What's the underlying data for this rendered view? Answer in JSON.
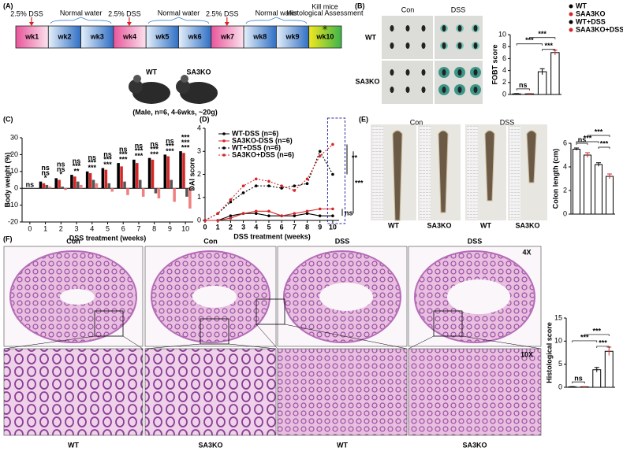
{
  "panel_labels": [
    "(A)",
    "(B)",
    "(C)",
    "(D)",
    "(E)",
    "(F)"
  ],
  "timeline": {
    "weeks": [
      "wk1",
      "wk2",
      "wk3",
      "wk4",
      "wk5",
      "wk6",
      "wk7",
      "wk8",
      "wk9",
      "wk10"
    ],
    "treatments": [
      "2.5% DSS",
      "Normal water",
      "2.5% DSS",
      "Normal water",
      "2.5% DSS",
      "Normal water"
    ],
    "end_labels": [
      "Kill mice",
      "Histological Assessment"
    ]
  },
  "mice": {
    "labels": [
      "WT",
      "SA3KO"
    ],
    "note": "(Male, n=6, 4-6wks, ~20g)"
  },
  "images_b": {
    "columns": [
      "Con",
      "DSS"
    ],
    "rows": [
      "WT",
      "SA3KO"
    ]
  },
  "images_e": {
    "columns": [
      "Con",
      "DSS"
    ],
    "labels": [
      "WT",
      "SA3KO",
      "WT",
      "SA3KO"
    ]
  },
  "images_f": {
    "columns": [
      "Con",
      "Con",
      "DSS",
      "DSS"
    ],
    "magnifications": [
      "4X",
      "10X"
    ],
    "labels": [
      "WT",
      "SA3KO",
      "WT",
      "SA3KO"
    ]
  },
  "chart_data": [
    {
      "type": "bar",
      "ylabel": "FOBT score",
      "ylim": [
        0,
        10
      ],
      "yticks": [
        0,
        2,
        4,
        6,
        8,
        10
      ],
      "series": [
        {
          "name": "WT",
          "color": "#000000",
          "marker": "circle",
          "values": [
            0.1
          ],
          "errors": [
            0.05
          ]
        },
        {
          "name": "SAA3KO",
          "color": "#d62728",
          "marker": "square",
          "values": [
            0.1
          ],
          "errors": [
            0.05
          ]
        },
        {
          "name": "WT+DSS",
          "color": "#000000",
          "marker": "triangle",
          "values": [
            3.8
          ],
          "errors": [
            0.5
          ]
        },
        {
          "name": "SAA3KO+DSS",
          "color": "#d62728",
          "marker": "triangle",
          "values": [
            7.0
          ],
          "errors": [
            0.4
          ]
        }
      ],
      "annotations": [
        "ns",
        "***",
        "***",
        "***"
      ]
    },
    {
      "type": "groupbar",
      "ylabel": "Body weight (%)",
      "xlabel": "DSS treatment (weeks)",
      "x": [
        0,
        1,
        2,
        3,
        4,
        5,
        6,
        7,
        8,
        9,
        10
      ],
      "xticks": [
        0,
        1,
        2,
        3,
        4,
        5,
        6,
        7,
        8,
        9,
        10
      ],
      "xlim": [
        -0.5,
        10.5
      ],
      "ylim": [
        -20,
        30
      ],
      "yticks": [
        -20,
        -10,
        0,
        10,
        20,
        30
      ],
      "series": [
        {
          "name": "WT",
          "color": "#000000",
          "values": [
            0,
            4,
            6,
            8,
            10,
            12,
            15,
            17,
            18,
            20,
            22
          ]
        },
        {
          "name": "SA3KO",
          "color": "#d62728",
          "values": [
            0,
            3,
            5,
            7,
            9,
            11,
            13,
            15,
            17,
            19,
            21
          ]
        },
        {
          "name": "WT+DSS",
          "color": "#555555",
          "values": [
            0,
            2,
            1,
            4,
            5,
            3,
            4,
            5,
            -3,
            5,
            -5
          ]
        },
        {
          "name": "SA3KO+DSS",
          "color": "#f08080",
          "values": [
            0,
            1,
            -1,
            2,
            3,
            -2,
            -4,
            -5,
            -6,
            -8,
            -12
          ]
        }
      ],
      "annotations": [
        [
          "ns"
        ],
        [
          "*",
          "ns",
          "ns"
        ],
        [
          "*",
          "ns",
          "ns"
        ],
        [
          "**",
          "***",
          "ns"
        ],
        [
          "***",
          "***",
          "ns"
        ],
        [
          "***",
          "***",
          "ns"
        ],
        [
          "***",
          "***",
          "ns"
        ],
        [
          "***",
          "***",
          "ns"
        ],
        [
          "***",
          "***",
          "ns"
        ],
        [
          "***",
          "***",
          "ns"
        ],
        [
          "***",
          "***",
          "***"
        ]
      ]
    },
    {
      "type": "line",
      "ylabel": "DAI score",
      "xlabel": "DSS treatment (weeks)",
      "x": [
        0,
        1,
        2,
        3,
        4,
        5,
        6,
        7,
        8,
        9,
        10
      ],
      "xticks": [
        0,
        1,
        2,
        3,
        4,
        5,
        6,
        7,
        8,
        9,
        10
      ],
      "xlim": [
        0,
        10.5
      ],
      "ylim": [
        0,
        4
      ],
      "yticks": [
        0,
        1,
        2,
        3,
        4
      ],
      "series": [
        {
          "name": "WT-DSS (n=6)",
          "color": "#000000",
          "dashed": false,
          "values": [
            0,
            0,
            0.2,
            0.3,
            0.3,
            0.2,
            0.2,
            0.2,
            0.3,
            0.2,
            0.2
          ]
        },
        {
          "name": "SA3KO-DSS (n=6)",
          "color": "#d62728",
          "dashed": false,
          "values": [
            0,
            0,
            0.1,
            0.3,
            0.4,
            0.4,
            0.2,
            0.3,
            0.4,
            0.5,
            0.5
          ]
        },
        {
          "name": "WT+DSS (n=6)",
          "color": "#000000",
          "dashed": true,
          "values": [
            0,
            0.3,
            0.8,
            1.2,
            1.5,
            1.5,
            1.4,
            1.5,
            1.6,
            3.0,
            2.0
          ]
        },
        {
          "name": "SA3KO+DSS (n=6)",
          "color": "#d62728",
          "dashed": true,
          "values": [
            0,
            0.3,
            0.9,
            1.5,
            1.8,
            1.7,
            1.5,
            1.3,
            1.8,
            2.8,
            3.3
          ]
        }
      ],
      "annotations": [
        "**",
        "***",
        "ns"
      ]
    },
    {
      "type": "bar",
      "ylabel": "Colon length (cm)",
      "ylim": [
        0,
        6
      ],
      "yticks": [
        0,
        2,
        4,
        6
      ],
      "values": [
        5.5,
        5.0,
        4.2,
        3.2
      ],
      "errors": [
        0.1,
        0.2,
        0.15,
        0.2
      ],
      "colors": [
        "#000000",
        "#d62728",
        "#000000",
        "#d62728"
      ],
      "annotations": [
        "ns",
        "***",
        "***",
        "***"
      ]
    },
    {
      "type": "bar",
      "ylabel": "Histological score",
      "ylim": [
        0,
        15
      ],
      "yticks": [
        0,
        5,
        10,
        15
      ],
      "values": [
        0.1,
        0.1,
        3.8,
        7.8
      ],
      "errors": [
        0.05,
        0.05,
        0.5,
        0.9
      ],
      "colors": [
        "#000000",
        "#d62728",
        "#000000",
        "#d62728"
      ],
      "annotations": [
        "ns",
        "***",
        "***",
        "***"
      ]
    }
  ]
}
